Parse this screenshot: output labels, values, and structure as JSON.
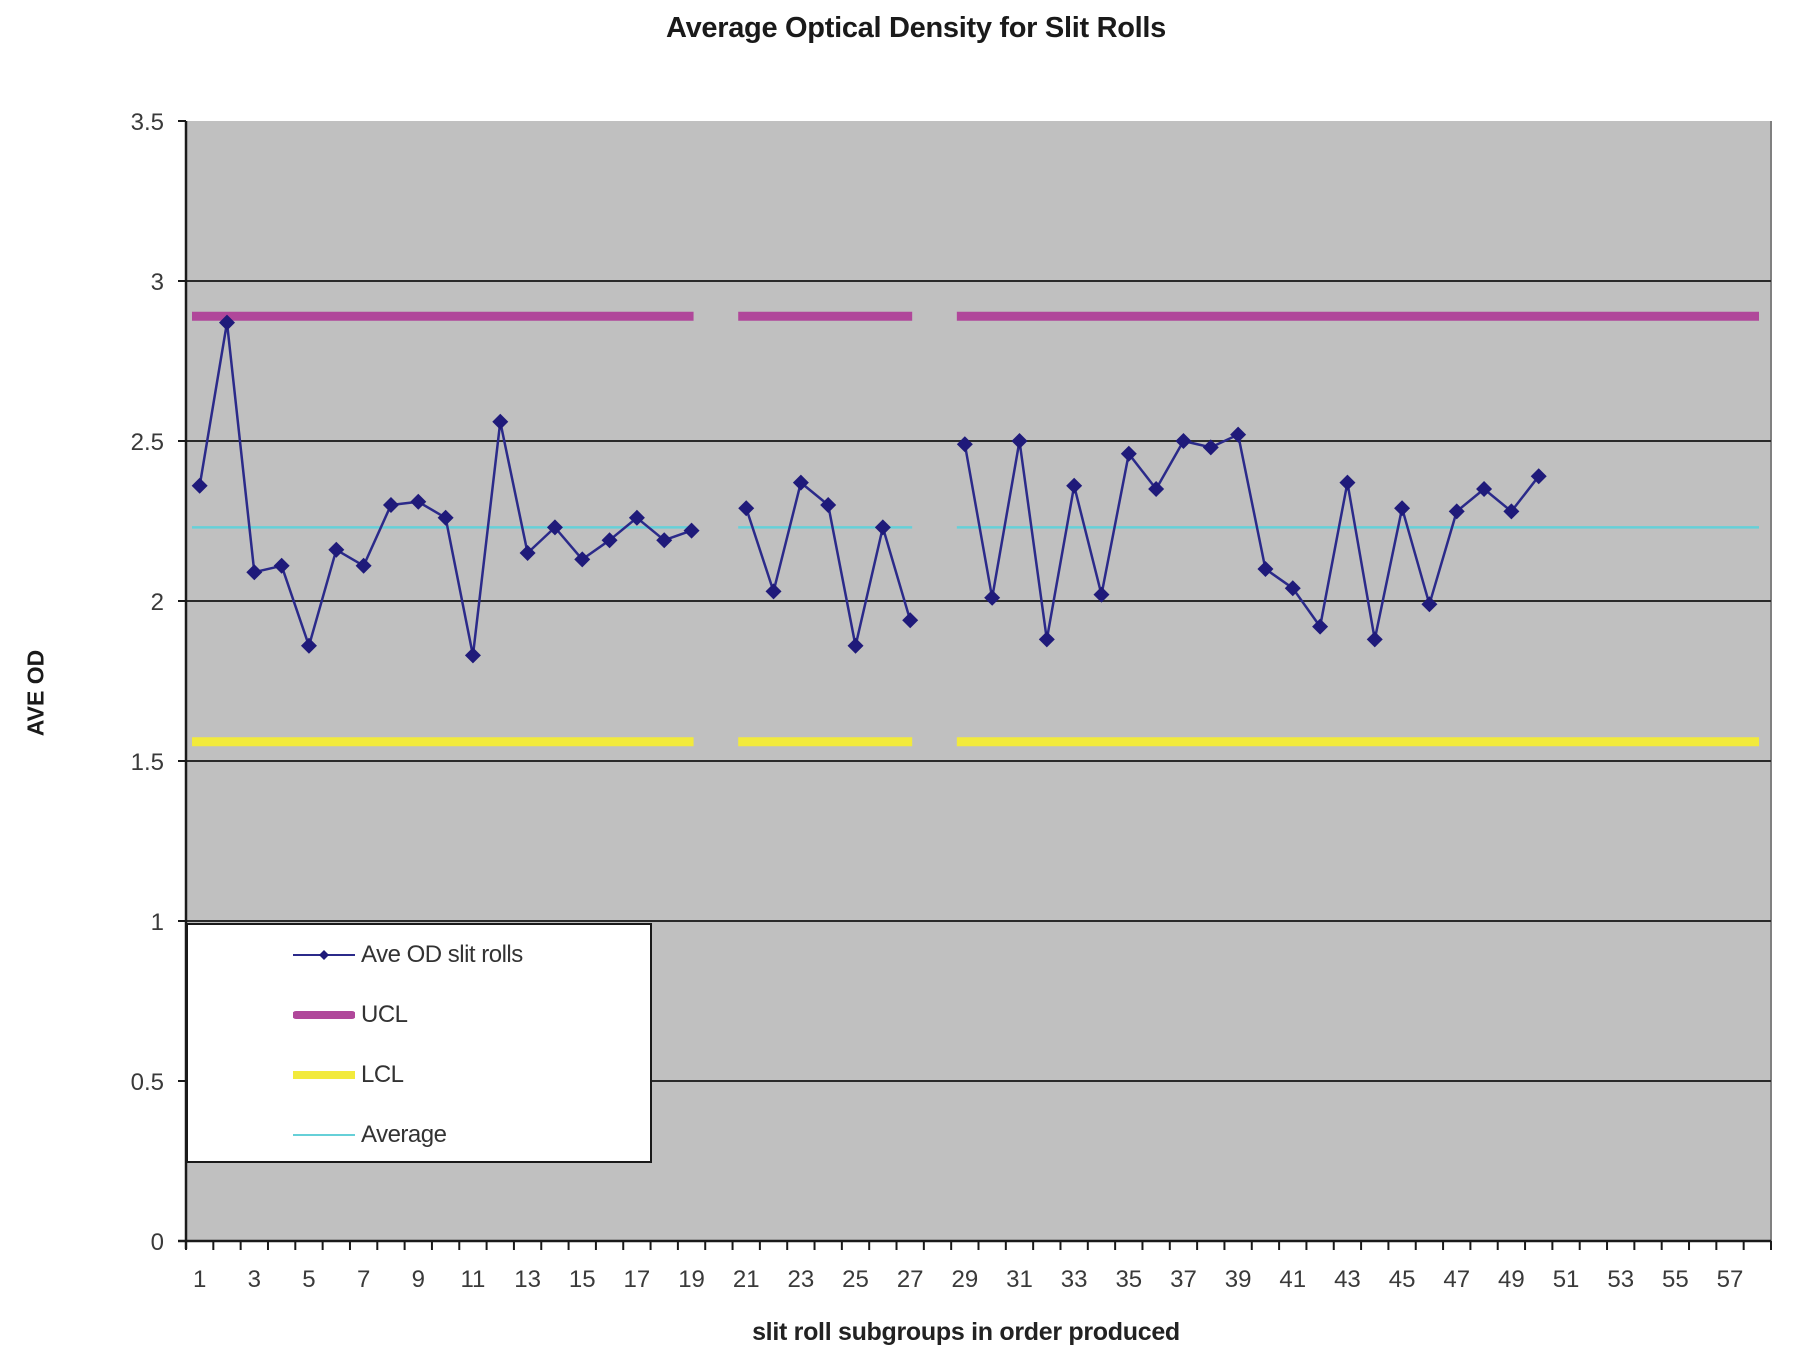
{
  "chart_data": {
    "type": "line",
    "title": "Average Optical Density for Slit Rolls",
    "xlabel": "slit roll subgroups in order produced",
    "ylabel": "AVE OD",
    "ylim": [
      0,
      3.5
    ],
    "yticks": [
      "0",
      "0.5",
      "1",
      "1.5",
      "2",
      "2.5",
      "3",
      "3.5"
    ],
    "ytick_values": [
      0,
      0.5,
      1,
      1.5,
      2,
      2.5,
      3,
      3.5
    ],
    "x_categories_count": 58,
    "xtick_labels": [
      "1",
      "3",
      "5",
      "7",
      "9",
      "11",
      "13",
      "15",
      "17",
      "19",
      "21",
      "23",
      "25",
      "27",
      "29",
      "31",
      "33",
      "35",
      "37",
      "39",
      "41",
      "43",
      "45",
      "47",
      "49",
      "51",
      "53",
      "55",
      "57"
    ],
    "grid": true,
    "legend_position": "lower-left inside plot",
    "series": [
      {
        "name": "Ave OD slit rolls",
        "color": "#1f1a7a",
        "marker": "diamond",
        "x": [
          1,
          2,
          3,
          4,
          5,
          6,
          7,
          8,
          9,
          10,
          11,
          12,
          13,
          14,
          15,
          16,
          17,
          18,
          19,
          21,
          22,
          23,
          24,
          25,
          26,
          27,
          29,
          30,
          31,
          32,
          33,
          34,
          35,
          36,
          37,
          38,
          39,
          40,
          41,
          42,
          43,
          44,
          45,
          46,
          47,
          48,
          49,
          50
        ],
        "values": [
          2.36,
          2.87,
          2.09,
          2.11,
          1.86,
          2.16,
          2.11,
          2.3,
          2.31,
          2.26,
          1.83,
          2.56,
          2.15,
          2.23,
          2.13,
          2.19,
          2.26,
          2.19,
          2.22,
          2.29,
          2.03,
          2.37,
          2.3,
          1.86,
          2.23,
          1.94,
          2.49,
          2.01,
          2.5,
          1.88,
          2.36,
          2.02,
          2.46,
          2.35,
          2.5,
          2.48,
          2.52,
          2.1,
          2.04,
          1.92,
          2.37,
          1.88,
          2.29,
          1.99,
          2.28,
          2.35,
          2.28,
          2.39
        ],
        "segments": [
          [
            1,
            19
          ],
          [
            21,
            27
          ],
          [
            29,
            50
          ]
        ]
      },
      {
        "name": "UCL",
        "color": "#b0479a",
        "value": 2.89,
        "segments": [
          [
            1,
            19
          ],
          [
            21,
            27
          ],
          [
            29,
            58
          ]
        ]
      },
      {
        "name": "LCL",
        "color": "#f2ea3c",
        "value": 1.56,
        "segments": [
          [
            1,
            19
          ],
          [
            21,
            27
          ],
          [
            29,
            58
          ]
        ]
      },
      {
        "name": "Average",
        "color": "#66d0d8",
        "value": 2.23,
        "segments": [
          [
            1,
            19
          ],
          [
            21,
            27
          ],
          [
            29,
            58
          ]
        ]
      }
    ]
  },
  "colors": {
    "plot_background": "#c0c0c0",
    "gridline": "#2a2a2a",
    "axis": "#1a1a1a",
    "text": "#333333"
  },
  "legend": {
    "items": [
      {
        "label": "Ave OD slit rolls",
        "key": "series"
      },
      {
        "label": "UCL",
        "key": "ucl"
      },
      {
        "label": "LCL",
        "key": "lcl"
      },
      {
        "label": "Average",
        "key": "avg"
      }
    ]
  }
}
